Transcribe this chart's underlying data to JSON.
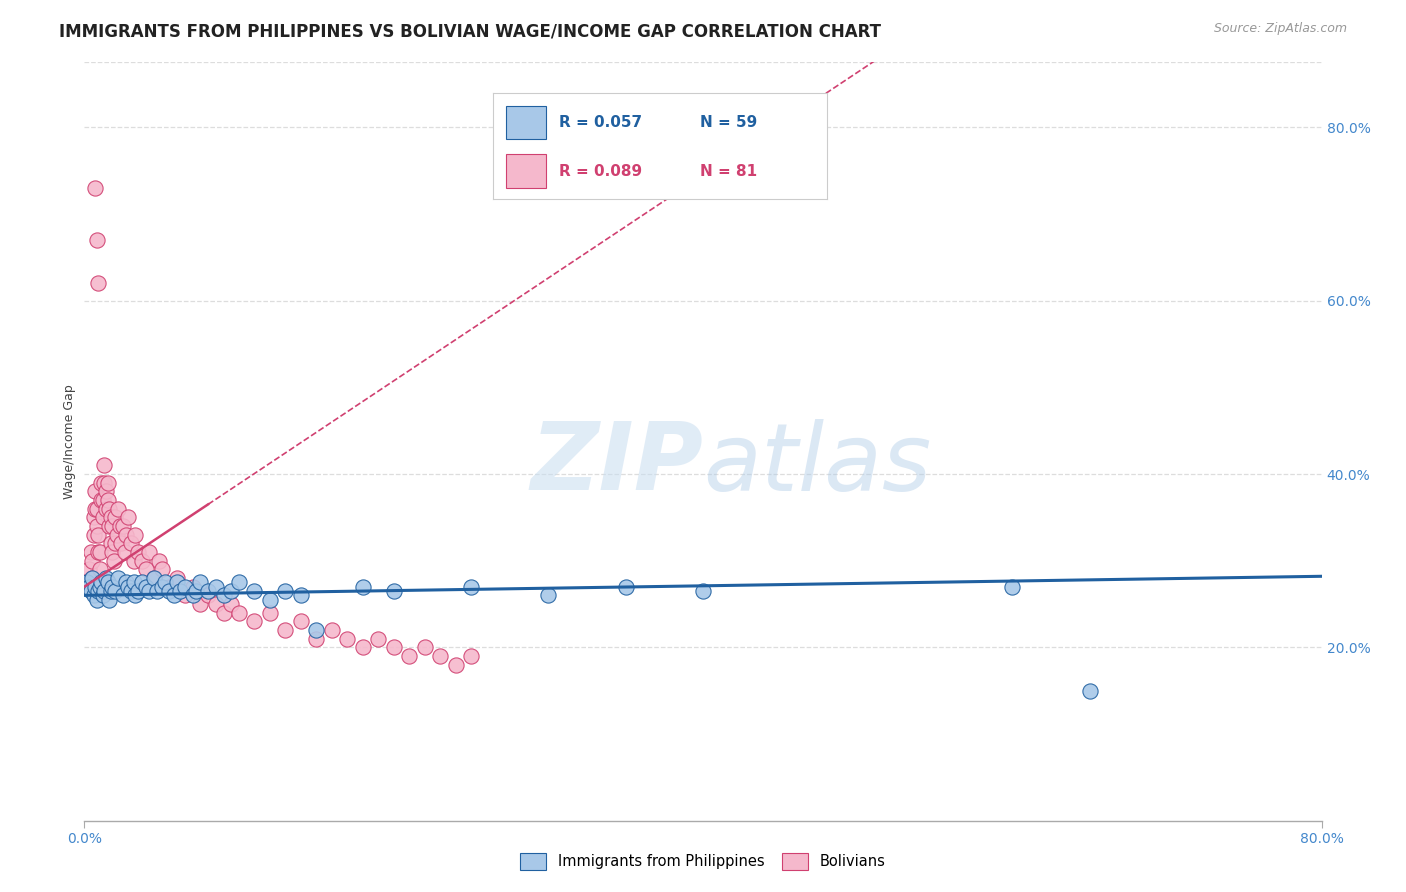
{
  "title": "IMMIGRANTS FROM PHILIPPINES VS BOLIVIAN WAGE/INCOME GAP CORRELATION CHART",
  "source": "Source: ZipAtlas.com",
  "ylabel": "Wage/Income Gap",
  "right_ytick_vals": [
    0.2,
    0.4,
    0.6,
    0.8
  ],
  "legend_blue_r": "0.057",
  "legend_blue_n": "59",
  "legend_pink_r": "0.089",
  "legend_pink_n": "81",
  "legend_label_blue": "Immigrants from Philippines",
  "legend_label_pink": "Bolivians",
  "blue_color": "#a8c8e8",
  "pink_color": "#f5b8cc",
  "blue_line_color": "#2060a0",
  "pink_line_color": "#d04070",
  "watermark_zip": "ZIP",
  "watermark_atlas": "atlas",
  "blue_scatter_x": [
    0.002,
    0.003,
    0.004,
    0.005,
    0.006,
    0.007,
    0.008,
    0.009,
    0.01,
    0.011,
    0.012,
    0.013,
    0.014,
    0.015,
    0.016,
    0.017,
    0.018,
    0.02,
    0.022,
    0.025,
    0.027,
    0.028,
    0.03,
    0.032,
    0.033,
    0.035,
    0.037,
    0.04,
    0.042,
    0.045,
    0.047,
    0.05,
    0.052,
    0.055,
    0.058,
    0.06,
    0.062,
    0.065,
    0.07,
    0.072,
    0.075,
    0.08,
    0.085,
    0.09,
    0.095,
    0.1,
    0.11,
    0.12,
    0.13,
    0.14,
    0.15,
    0.18,
    0.2,
    0.25,
    0.3,
    0.35,
    0.4,
    0.6,
    0.65
  ],
  "blue_scatter_y": [
    0.275,
    0.27,
    0.265,
    0.28,
    0.26,
    0.27,
    0.255,
    0.265,
    0.27,
    0.275,
    0.26,
    0.265,
    0.28,
    0.275,
    0.255,
    0.265,
    0.27,
    0.265,
    0.28,
    0.26,
    0.275,
    0.27,
    0.265,
    0.275,
    0.26,
    0.265,
    0.275,
    0.27,
    0.265,
    0.28,
    0.265,
    0.27,
    0.275,
    0.265,
    0.26,
    0.275,
    0.265,
    0.27,
    0.26,
    0.265,
    0.275,
    0.265,
    0.27,
    0.26,
    0.265,
    0.275,
    0.265,
    0.255,
    0.265,
    0.26,
    0.22,
    0.27,
    0.265,
    0.27,
    0.26,
    0.27,
    0.265,
    0.27,
    0.15
  ],
  "pink_scatter_x": [
    0.002,
    0.003,
    0.003,
    0.004,
    0.005,
    0.005,
    0.006,
    0.006,
    0.007,
    0.007,
    0.008,
    0.008,
    0.009,
    0.009,
    0.01,
    0.01,
    0.011,
    0.011,
    0.012,
    0.012,
    0.013,
    0.013,
    0.014,
    0.014,
    0.015,
    0.015,
    0.016,
    0.016,
    0.017,
    0.017,
    0.018,
    0.018,
    0.019,
    0.02,
    0.02,
    0.021,
    0.022,
    0.023,
    0.024,
    0.025,
    0.026,
    0.027,
    0.028,
    0.03,
    0.032,
    0.033,
    0.035,
    0.037,
    0.04,
    0.042,
    0.045,
    0.048,
    0.05,
    0.055,
    0.06,
    0.065,
    0.07,
    0.075,
    0.08,
    0.085,
    0.09,
    0.095,
    0.1,
    0.11,
    0.12,
    0.13,
    0.14,
    0.15,
    0.16,
    0.17,
    0.18,
    0.19,
    0.2,
    0.21,
    0.22,
    0.23,
    0.24,
    0.25,
    0.007,
    0.008,
    0.009
  ],
  "pink_scatter_y": [
    0.275,
    0.27,
    0.29,
    0.31,
    0.28,
    0.3,
    0.33,
    0.35,
    0.36,
    0.38,
    0.34,
    0.36,
    0.31,
    0.33,
    0.29,
    0.31,
    0.37,
    0.39,
    0.35,
    0.37,
    0.39,
    0.41,
    0.36,
    0.38,
    0.37,
    0.39,
    0.34,
    0.36,
    0.32,
    0.35,
    0.31,
    0.34,
    0.3,
    0.32,
    0.35,
    0.33,
    0.36,
    0.34,
    0.32,
    0.34,
    0.31,
    0.33,
    0.35,
    0.32,
    0.3,
    0.33,
    0.31,
    0.3,
    0.29,
    0.31,
    0.28,
    0.3,
    0.29,
    0.27,
    0.28,
    0.26,
    0.27,
    0.25,
    0.26,
    0.25,
    0.24,
    0.25,
    0.24,
    0.23,
    0.24,
    0.22,
    0.23,
    0.21,
    0.22,
    0.21,
    0.2,
    0.21,
    0.2,
    0.19,
    0.2,
    0.19,
    0.18,
    0.19,
    0.73,
    0.67,
    0.62
  ],
  "xlim": [
    0.0,
    0.8
  ],
  "ylim": [
    0.0,
    0.875
  ],
  "blue_trend_x": [
    0.0,
    0.8
  ],
  "blue_trend_y": [
    0.26,
    0.282
  ],
  "pink_trend_x": [
    0.0,
    0.08
  ],
  "pink_trend_y": [
    0.27,
    0.365
  ],
  "background_color": "#ffffff",
  "grid_color": "#dddddd",
  "title_fontsize": 12,
  "axis_label_fontsize": 9,
  "tick_fontsize": 10
}
